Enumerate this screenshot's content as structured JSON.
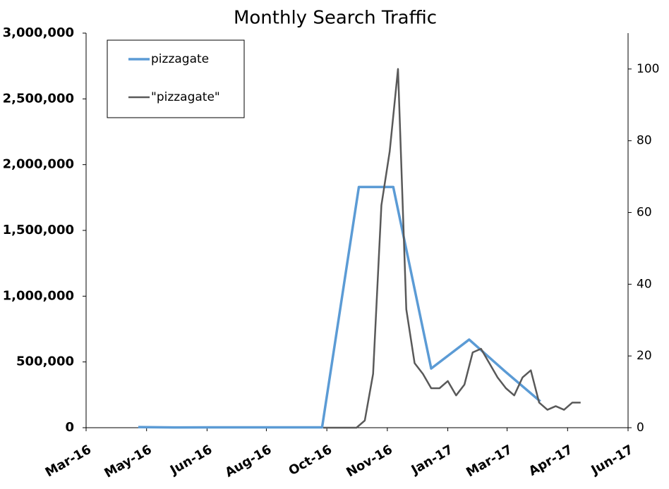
{
  "chart_data": {
    "type": "line",
    "title": "Monthly Search Traffic",
    "xlim": [
      42430,
      42887
    ],
    "xticks": [
      {
        "value": 42430,
        "label": "Mar-16"
      },
      {
        "value": 42481,
        "label": "May-16"
      },
      {
        "value": 42532,
        "label": "Jun-16"
      },
      {
        "value": 42582,
        "label": "Aug-16"
      },
      {
        "value": 42633,
        "label": "Oct-16"
      },
      {
        "value": 42684,
        "label": "Nov-16"
      },
      {
        "value": 42735,
        "label": "Jan-17"
      },
      {
        "value": 42785,
        "label": "Mar-17"
      },
      {
        "value": 42836,
        "label": "Apr-17"
      },
      {
        "value": 42887,
        "label": "Jun-17"
      }
    ],
    "ylim": [
      0,
      3000000
    ],
    "yticks": [
      0,
      {
        "value": 500000,
        "label": "500,000"
      },
      {
        "value": 1000000,
        "label": "1,000,000"
      },
      {
        "value": 1500000,
        "label": "1,500,000"
      },
      {
        "value": 2000000,
        "label": "2,000,000"
      },
      {
        "value": 2500000,
        "label": "2,500,000"
      },
      {
        "value": 3000000,
        "label": "3,000,000"
      }
    ],
    "y2lim": [
      0,
      110
    ],
    "y2ticks": [
      0,
      20,
      40,
      60,
      80,
      100
    ],
    "legend": "top-left",
    "series": [
      {
        "name": "pizzagate",
        "color": "#5b9bd5",
        "x": [
          42474,
          42504,
          42535,
          42565,
          42595,
          42629,
          42660,
          42689,
          42721,
          42753,
          42783,
          42813
        ],
        "values": [
          5000,
          2000,
          3000,
          3000,
          3000,
          3000,
          1830000,
          1830000,
          450000,
          670000,
          430000,
          200000
        ]
      },
      {
        "name": "\"pizzagate\"",
        "color": "#595959",
        "axis": "y2",
        "x": [
          42630,
          42637,
          42644,
          42651,
          42658,
          42665,
          42672,
          42679,
          42686,
          42693,
          42700,
          42707,
          42714,
          42721,
          42728,
          42735,
          42742,
          42749,
          42756,
          42763,
          42770,
          42777,
          42784,
          42791,
          42798,
          42805,
          42812,
          42819,
          42826,
          42833,
          42840,
          42847
        ],
        "values": [
          0,
          0,
          0,
          0,
          0,
          2,
          15,
          62,
          77,
          100,
          33,
          18,
          15,
          11,
          11,
          13,
          9,
          12,
          21,
          22,
          18,
          14,
          11,
          9,
          14,
          16,
          7,
          5,
          6,
          5,
          7,
          7
        ]
      }
    ]
  }
}
